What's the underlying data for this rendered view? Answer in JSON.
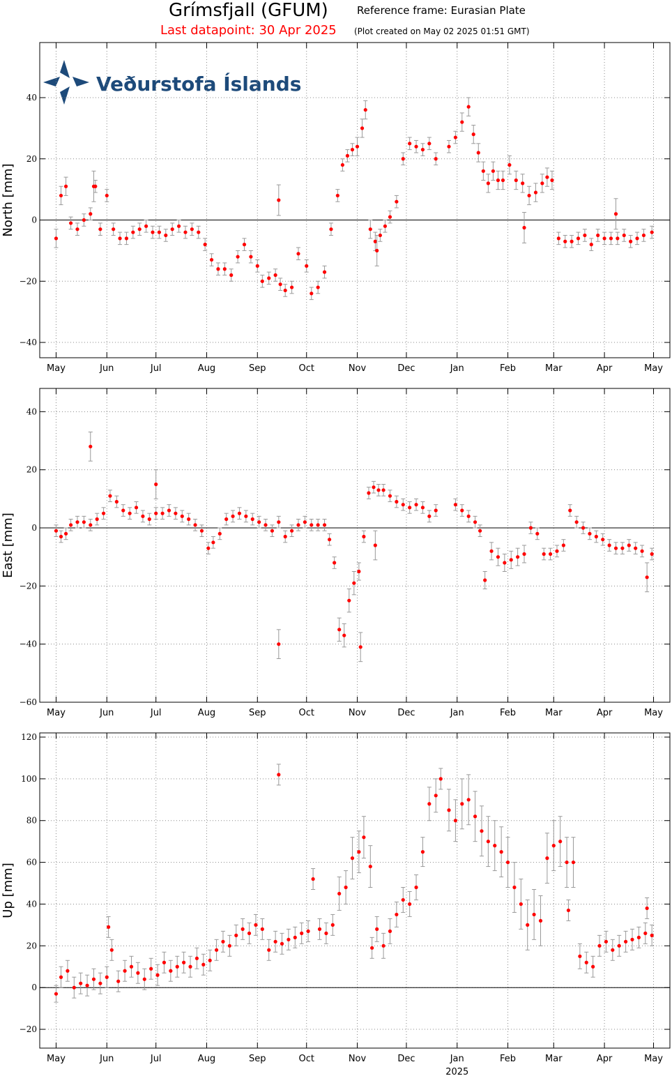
{
  "header": {
    "station": "Grímsfjall (GFUM)",
    "reference_frame": "Reference frame: Eurasian Plate",
    "last_datapoint": "Last datapoint: 30 Apr 2025",
    "created": "(Plot created on May 02 2025 01:51 GMT)"
  },
  "logo": {
    "text": "Veðurstofa Íslands"
  },
  "colors": {
    "points": "#ff0000",
    "errorbars": "#999999",
    "title_red": "#ff0000",
    "logo": "#1d4a7a"
  },
  "chart_data": [
    {
      "type": "scatter",
      "ylabel": "North [mm]",
      "ylim": [
        -45,
        58
      ],
      "yticks": [
        -40,
        -20,
        0,
        20,
        40
      ],
      "xlabel": "",
      "xticks": [
        "May",
        "Jun",
        "Jul",
        "Aug",
        "Sep",
        "Oct",
        "Nov",
        "Dec",
        "Jan",
        "Feb",
        "Mar",
        "Apr",
        "May"
      ],
      "grid": true,
      "zero_line": true,
      "x": [
        "2024-05-01",
        "2024-05-04",
        "2024-05-07",
        "2024-05-10",
        "2024-05-14",
        "2024-05-18",
        "2024-05-22",
        "2024-05-25",
        "2024-05-28",
        "2024-06-01",
        "2024-06-05",
        "2024-06-09",
        "2024-06-13",
        "2024-06-17",
        "2024-06-21",
        "2024-06-25",
        "2024-06-29",
        "2024-07-03",
        "2024-07-07",
        "2024-07-11",
        "2024-07-15",
        "2024-07-19",
        "2024-07-23",
        "2024-07-27",
        "2024-07-31",
        "2024-08-04",
        "2024-08-08",
        "2024-08-12",
        "2024-08-16",
        "2024-08-20",
        "2024-08-24",
        "2024-08-28",
        "2024-09-01",
        "2024-09-04",
        "2024-09-08",
        "2024-09-12",
        "2024-09-15",
        "2024-09-18",
        "2024-09-22",
        "2024-09-26",
        "2024-10-01",
        "2024-10-04",
        "2024-10-08",
        "2024-10-12",
        "2024-10-16",
        "2024-10-20",
        "2024-10-23",
        "2024-10-26",
        "2024-10-29",
        "2024-11-01",
        "2024-11-04",
        "2024-11-06",
        "2024-11-09",
        "2024-11-12",
        "2024-11-15",
        "2024-11-18",
        "2024-11-21",
        "2024-11-25",
        "2024-11-29",
        "2024-12-03",
        "2024-12-07",
        "2024-12-11",
        "2024-12-15",
        "2024-12-19",
        "2024-12-27",
        "2024-12-31",
        "2025-01-04",
        "2025-01-08",
        "2025-01-11",
        "2025-01-14",
        "2025-01-17",
        "2025-01-20",
        "2025-01-23",
        "2025-01-26",
        "2025-01-29",
        "2025-02-02",
        "2025-02-06",
        "2025-02-10",
        "2025-02-14",
        "2025-02-18",
        "2025-02-22",
        "2025-02-25",
        "2025-02-28",
        "2025-03-04",
        "2025-03-08",
        "2025-03-12",
        "2025-03-16",
        "2025-03-20",
        "2025-03-24",
        "2025-03-28",
        "2025-04-01",
        "2025-04-05",
        "2025-04-09",
        "2025-04-13",
        "2025-04-17",
        "2025-04-21",
        "2025-04-25",
        "2025-04-30"
      ],
      "y": [
        -6,
        8,
        11,
        -1,
        -3,
        0,
        2,
        11,
        -3,
        8,
        -3,
        -6,
        -6,
        -4,
        -3,
        -2,
        -4,
        -4,
        -5,
        -3,
        -2,
        -4,
        -3,
        -4,
        -8,
        -13,
        -16,
        -16,
        -18,
        -12,
        -8,
        -12,
        -15,
        -20,
        -19,
        -18,
        -21,
        -23,
        -22,
        -11,
        -15,
        -24,
        -22,
        -17,
        -3,
        8,
        18,
        21,
        23,
        24,
        30,
        36,
        -3,
        -7,
        -5,
        -2,
        1,
        6,
        20,
        25,
        24,
        23,
        25,
        20,
        24,
        27,
        32,
        37,
        28,
        22,
        16,
        12,
        16,
        13,
        13,
        18,
        13,
        12,
        8,
        9,
        12,
        14,
        13,
        -6,
        -7,
        -7,
        -6,
        -5,
        -8,
        -5,
        -6,
        -6,
        -6,
        -5,
        -7,
        -6,
        -5,
        -4
      ],
      "err": [
        3,
        3,
        3,
        2,
        2,
        2,
        2,
        2,
        2,
        2,
        2,
        2,
        2,
        2,
        2,
        2,
        2,
        2,
        2,
        2,
        2,
        2,
        2,
        2,
        2,
        2,
        2,
        2,
        2,
        2,
        2,
        2,
        2,
        2,
        2,
        2,
        2,
        2,
        2,
        2,
        2,
        2,
        2,
        2,
        2,
        2,
        2,
        2,
        2,
        3,
        3,
        3,
        3,
        3,
        2,
        2,
        2,
        2,
        2,
        2,
        2,
        2,
        2,
        2,
        2,
        2,
        3,
        3,
        3,
        3,
        3,
        3,
        3,
        3,
        3,
        3,
        3,
        3,
        3,
        3,
        3,
        3,
        3,
        2,
        2,
        2,
        2,
        2,
        2,
        2,
        2,
        2,
        2,
        2,
        2,
        2,
        2,
        2
      ],
      "outliers": [
        {
          "x": "2024-09-14",
          "y": 6.5
        },
        {
          "x": "2024-05-24",
          "y": 11
        },
        {
          "x": "2024-11-13",
          "y": -10
        },
        {
          "x": "2025-02-11",
          "y": -2.5
        },
        {
          "x": "2025-04-08",
          "y": 2
        }
      ]
    },
    {
      "type": "scatter",
      "ylabel": "East [mm]",
      "ylim": [
        -60,
        48
      ],
      "yticks": [
        -60,
        -40,
        -20,
        0,
        20,
        40
      ],
      "xlabel": "",
      "xticks": [
        "May",
        "Jun",
        "Jul",
        "Aug",
        "Sep",
        "Oct",
        "Nov",
        "Dec",
        "Jan",
        "Feb",
        "Mar",
        "Apr",
        "May"
      ],
      "grid": true,
      "zero_line": true,
      "x": [
        "2024-05-01",
        "2024-05-04",
        "2024-05-07",
        "2024-05-10",
        "2024-05-14",
        "2024-05-18",
        "2024-05-22",
        "2024-05-26",
        "2024-05-30",
        "2024-06-03",
        "2024-06-07",
        "2024-06-11",
        "2024-06-15",
        "2024-06-19",
        "2024-06-23",
        "2024-06-27",
        "2024-07-01",
        "2024-07-05",
        "2024-07-09",
        "2024-07-13",
        "2024-07-17",
        "2024-07-21",
        "2024-07-25",
        "2024-07-29",
        "2024-08-02",
        "2024-08-05",
        "2024-08-09",
        "2024-08-13",
        "2024-08-17",
        "2024-08-21",
        "2024-08-25",
        "2024-08-29",
        "2024-09-02",
        "2024-09-06",
        "2024-09-10",
        "2024-09-14",
        "2024-09-18",
        "2024-09-22",
        "2024-09-26",
        "2024-09-30",
        "2024-10-04",
        "2024-10-08",
        "2024-10-12",
        "2024-10-15",
        "2024-10-18",
        "2024-10-21",
        "2024-10-24",
        "2024-10-27",
        "2024-10-30",
        "2024-11-02",
        "2024-11-05",
        "2024-11-08",
        "2024-11-11",
        "2024-11-14",
        "2024-11-17",
        "2024-11-21",
        "2024-11-25",
        "2024-11-29",
        "2024-12-03",
        "2024-12-07",
        "2024-12-11",
        "2024-12-15",
        "2024-12-19",
        "2024-12-31",
        "2025-01-04",
        "2025-01-08",
        "2025-01-12",
        "2025-01-15",
        "2025-01-18",
        "2025-01-22",
        "2025-01-26",
        "2025-01-30",
        "2025-02-03",
        "2025-02-07",
        "2025-02-11",
        "2025-02-15",
        "2025-02-19",
        "2025-02-23",
        "2025-02-27",
        "2025-03-03",
        "2025-03-07",
        "2025-03-11",
        "2025-03-15",
        "2025-03-19",
        "2025-03-23",
        "2025-03-27",
        "2025-03-31",
        "2025-04-04",
        "2025-04-08",
        "2025-04-12",
        "2025-04-16",
        "2025-04-20",
        "2025-04-24",
        "2025-04-30"
      ],
      "y": [
        -1,
        -3,
        -2,
        1,
        2,
        2,
        1,
        3,
        5,
        11,
        9,
        6,
        5,
        7,
        4,
        3,
        5,
        5,
        6,
        5,
        4,
        3,
        1,
        -1,
        -7,
        -5,
        -2,
        3,
        4,
        5,
        4,
        3,
        2,
        1,
        -1,
        2,
        -3,
        -1,
        1,
        2,
        1,
        1,
        1,
        -4,
        -12,
        -35,
        -37,
        -25,
        -19,
        -15,
        -3,
        12,
        14,
        13,
        13,
        11,
        9,
        8,
        7,
        8,
        7,
        4,
        6,
        8,
        6,
        4,
        2,
        -1,
        -18,
        -8,
        -10,
        -12,
        -11,
        -10,
        -9,
        0,
        -2,
        -9,
        -9,
        -8,
        -6,
        6,
        2,
        0,
        -2,
        -3,
        -4,
        -6,
        -7,
        -7,
        -6,
        -7,
        -8,
        -9
      ],
      "err": [
        2,
        2,
        2,
        2,
        2,
        2,
        2,
        2,
        2,
        2,
        2,
        2,
        2,
        2,
        2,
        2,
        2,
        2,
        2,
        2,
        2,
        2,
        2,
        2,
        2,
        2,
        2,
        2,
        2,
        2,
        2,
        2,
        2,
        2,
        2,
        2,
        2,
        2,
        2,
        2,
        2,
        2,
        2,
        2,
        2,
        4,
        4,
        4,
        4,
        3,
        2,
        2,
        2,
        2,
        2,
        2,
        2,
        2,
        2,
        2,
        2,
        2,
        2,
        2,
        2,
        2,
        2,
        2,
        3,
        3,
        3,
        3,
        3,
        3,
        3,
        2,
        2,
        2,
        2,
        2,
        2,
        2,
        2,
        2,
        2,
        2,
        2,
        2,
        2,
        2,
        2,
        2,
        2,
        2
      ],
      "outliers": [
        {
          "x": "2024-05-22",
          "y": 28
        },
        {
          "x": "2024-09-14",
          "y": -40
        },
        {
          "x": "2024-07-01",
          "y": 15
        },
        {
          "x": "2024-11-03",
          "y": -41
        },
        {
          "x": "2025-04-27",
          "y": -17
        },
        {
          "x": "2024-11-12",
          "y": -6
        }
      ]
    },
    {
      "type": "scatter",
      "ylabel": "Up [mm]",
      "ylim": [
        -29,
        122
      ],
      "yticks": [
        -20,
        0,
        20,
        40,
        60,
        80,
        100,
        120
      ],
      "xlabel": "2025",
      "xticks": [
        "May",
        "Jun",
        "Jul",
        "Aug",
        "Sep",
        "Oct",
        "Nov",
        "Dec",
        "Jan",
        "Feb",
        "Mar",
        "Apr",
        "May"
      ],
      "grid": true,
      "zero_line": true,
      "x": [
        "2024-05-01",
        "2024-05-04",
        "2024-05-08",
        "2024-05-12",
        "2024-05-16",
        "2024-05-20",
        "2024-05-24",
        "2024-05-28",
        "2024-06-01",
        "2024-06-04",
        "2024-06-08",
        "2024-06-12",
        "2024-06-16",
        "2024-06-20",
        "2024-06-24",
        "2024-06-28",
        "2024-07-02",
        "2024-07-06",
        "2024-07-10",
        "2024-07-14",
        "2024-07-18",
        "2024-07-22",
        "2024-07-26",
        "2024-07-30",
        "2024-08-03",
        "2024-08-07",
        "2024-08-11",
        "2024-08-15",
        "2024-08-19",
        "2024-08-23",
        "2024-08-27",
        "2024-08-31",
        "2024-09-04",
        "2024-09-08",
        "2024-09-12",
        "2024-09-16",
        "2024-09-20",
        "2024-09-24",
        "2024-09-28",
        "2024-10-02",
        "2024-10-05",
        "2024-10-09",
        "2024-10-13",
        "2024-10-17",
        "2024-10-21",
        "2024-10-25",
        "2024-10-29",
        "2024-11-02",
        "2024-11-05",
        "2024-11-09",
        "2024-11-13",
        "2024-11-17",
        "2024-11-21",
        "2024-11-25",
        "2024-11-29",
        "2024-12-03",
        "2024-12-07",
        "2024-12-11",
        "2024-12-15",
        "2024-12-19",
        "2024-12-27",
        "2024-12-31",
        "2025-01-04",
        "2025-01-08",
        "2025-01-12",
        "2025-01-16",
        "2025-01-20",
        "2025-01-24",
        "2025-01-28",
        "2025-02-01",
        "2025-02-05",
        "2025-02-09",
        "2025-02-13",
        "2025-02-17",
        "2025-02-21",
        "2025-02-25",
        "2025-03-01",
        "2025-03-05",
        "2025-03-09",
        "2025-03-13",
        "2025-03-17",
        "2025-03-21",
        "2025-03-25",
        "2025-03-29",
        "2025-04-02",
        "2025-04-06",
        "2025-04-10",
        "2025-04-14",
        "2025-04-18",
        "2025-04-22",
        "2025-04-26",
        "2025-04-30"
      ],
      "y": [
        -3,
        5,
        8,
        0,
        2,
        1,
        4,
        2,
        5,
        18,
        3,
        8,
        10,
        7,
        4,
        9,
        6,
        12,
        8,
        10,
        12,
        10,
        14,
        11,
        13,
        18,
        22,
        20,
        25,
        28,
        26,
        30,
        28,
        18,
        22,
        21,
        23,
        24,
        26,
        27,
        52,
        28,
        26,
        30,
        45,
        48,
        62,
        65,
        72,
        58,
        28,
        20,
        27,
        35,
        42,
        40,
        48,
        65,
        88,
        92,
        85,
        80,
        88,
        90,
        82,
        75,
        70,
        68,
        65,
        60,
        48,
        40,
        30,
        35,
        32,
        62,
        68,
        70,
        60,
        60,
        15,
        12,
        10,
        20,
        22,
        18,
        20,
        22,
        23,
        24,
        26,
        25
      ],
      "err": [
        4,
        5,
        5,
        5,
        5,
        5,
        5,
        5,
        5,
        5,
        5,
        5,
        5,
        5,
        5,
        5,
        5,
        5,
        5,
        5,
        5,
        5,
        5,
        5,
        5,
        5,
        5,
        5,
        5,
        5,
        5,
        5,
        5,
        5,
        5,
        5,
        5,
        5,
        5,
        5,
        5,
        5,
        5,
        5,
        8,
        8,
        10,
        10,
        10,
        10,
        6,
        6,
        6,
        6,
        6,
        6,
        6,
        7,
        8,
        8,
        10,
        10,
        12,
        12,
        12,
        12,
        12,
        12,
        12,
        12,
        12,
        12,
        12,
        12,
        12,
        12,
        12,
        12,
        12,
        12,
        6,
        5,
        5,
        5,
        5,
        5,
        5,
        5,
        5,
        5,
        5,
        5
      ],
      "outliers": [
        {
          "x": "2024-09-14",
          "y": 102
        },
        {
          "x": "2024-06-02",
          "y": 29
        },
        {
          "x": "2024-12-22",
          "y": 100
        },
        {
          "x": "2024-11-10",
          "y": 19
        },
        {
          "x": "2025-03-10",
          "y": 37
        },
        {
          "x": "2025-04-27",
          "y": 38
        }
      ]
    }
  ]
}
